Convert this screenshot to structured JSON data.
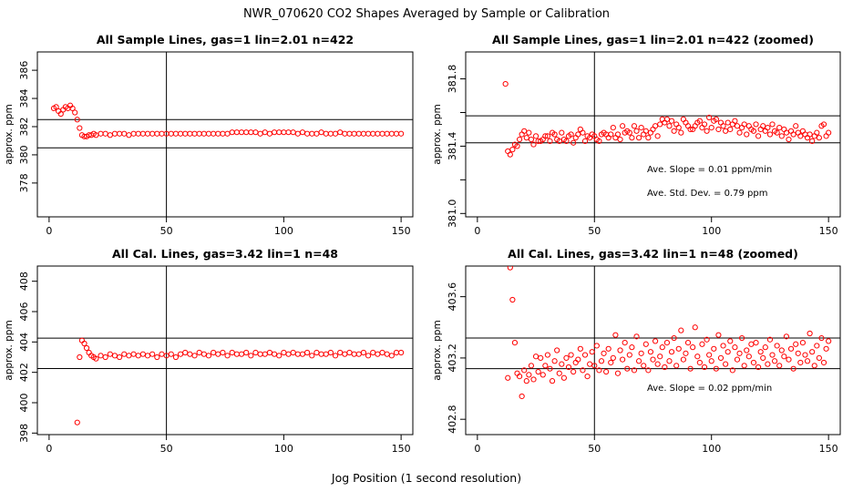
{
  "figure": {
    "title": "NWR_070620  CO2 Shapes Averaged by Sample or Calibration",
    "xlabel": "Jog Position (1 second resolution)"
  },
  "colors": {
    "points": "#ff0000",
    "frame": "#000000",
    "background": "#ffffff"
  },
  "chart_data": [
    {
      "type": "scatter",
      "title": "All Sample Lines, gas=1 lin=2.01 n=422",
      "ylabel": "approx. ppm",
      "xlim": [
        -5,
        155
      ],
      "ylim": [
        375.6,
        387.3
      ],
      "xticks": [
        0,
        50,
        100,
        150
      ],
      "yticks": [
        378,
        380,
        382,
        384,
        386
      ],
      "hlines": [
        382.5,
        380.5
      ],
      "vline": 50,
      "annotations": [],
      "series": [
        {
          "x": [
            2,
            3,
            4,
            5,
            6,
            7,
            8,
            9,
            10,
            11,
            12,
            13,
            14,
            15,
            16,
            17,
            18,
            19,
            20,
            22,
            24,
            26,
            28,
            30,
            32,
            34,
            36,
            38,
            40,
            42,
            44,
            46,
            48,
            50,
            52,
            54,
            56,
            58,
            60,
            62,
            64,
            66,
            68,
            70,
            72,
            74,
            76,
            78,
            80,
            82,
            84,
            86,
            88,
            90,
            92,
            94,
            96,
            98,
            100,
            102,
            104,
            106,
            108,
            110,
            112,
            114,
            116,
            118,
            120,
            122,
            124,
            126,
            128,
            130,
            132,
            134,
            136,
            138,
            140,
            142,
            144,
            146,
            148,
            150
          ],
          "y": [
            383.3,
            383.4,
            383.1,
            382.9,
            383.2,
            383.4,
            383.3,
            383.5,
            383.3,
            383.0,
            382.5,
            381.9,
            381.4,
            381.3,
            381.3,
            381.4,
            381.4,
            381.5,
            381.4,
            381.5,
            381.5,
            381.4,
            381.5,
            381.5,
            381.5,
            381.4,
            381.5,
            381.5,
            381.5,
            381.5,
            381.5,
            381.5,
            381.5,
            381.5,
            381.5,
            381.5,
            381.5,
            381.5,
            381.5,
            381.5,
            381.5,
            381.5,
            381.5,
            381.5,
            381.5,
            381.5,
            381.5,
            381.6,
            381.6,
            381.6,
            381.6,
            381.6,
            381.6,
            381.5,
            381.6,
            381.5,
            381.6,
            381.6,
            381.6,
            381.6,
            381.6,
            381.5,
            381.6,
            381.5,
            381.5,
            381.5,
            381.6,
            381.5,
            381.5,
            381.5,
            381.6,
            381.5,
            381.5,
            381.5,
            381.5,
            381.5,
            381.5,
            381.5,
            381.5,
            381.5,
            381.5,
            381.5,
            381.5,
            381.5
          ]
        }
      ]
    },
    {
      "type": "scatter",
      "title": "All Sample Lines, gas=1 lin=2.01 n=422 (zoomed)",
      "ylabel": "approx. ppm",
      "xlim": [
        -5,
        155
      ],
      "ylim": [
        380.98,
        381.96
      ],
      "xticks": [
        0,
        50,
        100,
        150
      ],
      "yticks": [
        381.0,
        381.2,
        381.4,
        381.6,
        381.8
      ],
      "ytick_labels": [
        "381.0",
        "",
        "381.4",
        "",
        "381.8"
      ],
      "hlines": [
        381.58,
        381.42
      ],
      "vline": 50,
      "annotations": [
        "Ave. Slope =  0.01  ppm/min",
        "Ave. Std. Dev. =  0.79  ppm"
      ],
      "series": [
        {
          "x": [
            12,
            13,
            14,
            15,
            16,
            17,
            18,
            19,
            20,
            21,
            22,
            23,
            24,
            25,
            26,
            27,
            28,
            29,
            30,
            31,
            32,
            33,
            34,
            35,
            36,
            37,
            38,
            39,
            40,
            41,
            42,
            43,
            44,
            45,
            46,
            47,
            48,
            49,
            50,
            51,
            52,
            53,
            54,
            55,
            56,
            57,
            58,
            59,
            60,
            61,
            62,
            63,
            64,
            65,
            66,
            67,
            68,
            69,
            70,
            71,
            72,
            73,
            74,
            75,
            76,
            77,
            78,
            79,
            80,
            81,
            82,
            83,
            84,
            85,
            86,
            87,
            88,
            89,
            90,
            91,
            92,
            93,
            94,
            95,
            96,
            97,
            98,
            99,
            100,
            101,
            102,
            103,
            104,
            105,
            106,
            107,
            108,
            109,
            110,
            111,
            112,
            113,
            114,
            115,
            116,
            117,
            118,
            119,
            120,
            121,
            122,
            123,
            124,
            125,
            126,
            127,
            128,
            129,
            130,
            131,
            132,
            133,
            134,
            135,
            136,
            137,
            138,
            139,
            140,
            141,
            142,
            143,
            144,
            145,
            146,
            147,
            148,
            149,
            150
          ],
          "y": [
            381.77,
            381.37,
            381.35,
            381.38,
            381.41,
            381.4,
            381.44,
            381.47,
            381.49,
            381.45,
            381.48,
            381.44,
            381.41,
            381.46,
            381.43,
            381.43,
            381.44,
            381.46,
            381.46,
            381.43,
            381.48,
            381.47,
            381.44,
            381.43,
            381.48,
            381.44,
            381.43,
            381.46,
            381.47,
            381.42,
            381.45,
            381.47,
            381.5,
            381.48,
            381.43,
            381.46,
            381.45,
            381.47,
            381.46,
            381.44,
            381.43,
            381.47,
            381.48,
            381.47,
            381.45,
            381.47,
            381.51,
            381.45,
            381.47,
            381.44,
            381.52,
            381.48,
            381.49,
            381.48,
            381.45,
            381.52,
            381.49,
            381.45,
            381.51,
            381.47,
            381.49,
            381.45,
            381.48,
            381.5,
            381.52,
            381.46,
            381.53,
            381.56,
            381.54,
            381.56,
            381.52,
            381.55,
            381.49,
            381.53,
            381.51,
            381.48,
            381.56,
            381.54,
            381.52,
            381.5,
            381.5,
            381.52,
            381.54,
            381.55,
            381.51,
            381.53,
            381.49,
            381.57,
            381.51,
            381.55,
            381.56,
            381.5,
            381.54,
            381.52,
            381.49,
            381.54,
            381.5,
            381.53,
            381.55,
            381.52,
            381.48,
            381.51,
            381.53,
            381.47,
            381.52,
            381.5,
            381.49,
            381.53,
            381.46,
            381.5,
            381.52,
            381.49,
            381.51,
            381.47,
            381.53,
            381.49,
            381.48,
            381.51,
            381.46,
            381.5,
            381.48,
            381.44,
            381.49,
            381.47,
            381.52,
            381.48,
            381.46,
            381.49,
            381.47,
            381.45,
            381.47,
            381.43,
            381.46,
            381.48,
            381.45,
            381.52,
            381.53,
            381.46,
            381.48
          ]
        }
      ]
    },
    {
      "type": "scatter",
      "title": "All Cal. Lines, gas=3.42 lin=1 n=48",
      "ylabel": "approx. ppm",
      "xlim": [
        -5,
        155
      ],
      "ylim": [
        397.9,
        409.0
      ],
      "xticks": [
        0,
        50,
        100,
        150
      ],
      "yticks": [
        398,
        400,
        402,
        404,
        406,
        408
      ],
      "hlines": [
        404.25,
        402.25
      ],
      "vline": 50,
      "annotations": [],
      "series": [
        {
          "x": [
            12,
            13,
            14,
            15,
            16,
            17,
            18,
            19,
            20,
            22,
            24,
            26,
            28,
            30,
            32,
            34,
            36,
            38,
            40,
            42,
            44,
            46,
            48,
            50,
            52,
            54,
            56,
            58,
            60,
            62,
            64,
            66,
            68,
            70,
            72,
            74,
            76,
            78,
            80,
            82,
            84,
            86,
            88,
            90,
            92,
            94,
            96,
            98,
            100,
            102,
            104,
            106,
            108,
            110,
            112,
            114,
            116,
            118,
            120,
            122,
            124,
            126,
            128,
            130,
            132,
            134,
            136,
            138,
            140,
            142,
            144,
            146,
            148,
            150
          ],
          "y": [
            398.7,
            403.0,
            404.1,
            403.9,
            403.6,
            403.3,
            403.1,
            403.0,
            402.9,
            403.1,
            403.0,
            403.2,
            403.1,
            403.0,
            403.2,
            403.1,
            403.2,
            403.1,
            403.2,
            403.1,
            403.2,
            403.0,
            403.2,
            403.1,
            403.2,
            403.0,
            403.2,
            403.3,
            403.2,
            403.1,
            403.3,
            403.2,
            403.1,
            403.3,
            403.2,
            403.3,
            403.1,
            403.3,
            403.2,
            403.2,
            403.3,
            403.1,
            403.3,
            403.2,
            403.2,
            403.3,
            403.2,
            403.1,
            403.3,
            403.2,
            403.3,
            403.2,
            403.2,
            403.3,
            403.1,
            403.3,
            403.2,
            403.2,
            403.3,
            403.1,
            403.3,
            403.2,
            403.3,
            403.2,
            403.2,
            403.3,
            403.1,
            403.3,
            403.2,
            403.3,
            403.2,
            403.1,
            403.3,
            403.3
          ]
        }
      ]
    },
    {
      "type": "scatter",
      "title": "All Cal. Lines, gas=3.42 lin=1 n=48 (zoomed)",
      "ylabel": "approx. ppm",
      "xlim": [
        -5,
        155
      ],
      "ylim": [
        402.7,
        403.8
      ],
      "xticks": [
        0,
        50,
        100,
        150
      ],
      "yticks": [
        402.8,
        403.2,
        403.6
      ],
      "ytick_labels": [
        "402.8",
        "403.2",
        "403.6"
      ],
      "hlines": [
        403.33,
        403.13
      ],
      "vline": 50,
      "annotations": [
        "Ave. Slope =  0.02  ppm/min"
      ],
      "series": [
        {
          "x": [
            13,
            14,
            15,
            16,
            17,
            18,
            19,
            20,
            21,
            22,
            23,
            24,
            25,
            26,
            27,
            28,
            29,
            30,
            31,
            32,
            33,
            34,
            35,
            36,
            37,
            38,
            39,
            40,
            41,
            42,
            43,
            44,
            45,
            46,
            47,
            48,
            49,
            50,
            51,
            52,
            53,
            54,
            55,
            56,
            57,
            58,
            59,
            60,
            61,
            62,
            63,
            64,
            65,
            66,
            67,
            68,
            69,
            70,
            71,
            72,
            73,
            74,
            75,
            76,
            77,
            78,
            79,
            80,
            81,
            82,
            83,
            84,
            85,
            86,
            87,
            88,
            89,
            90,
            91,
            92,
            93,
            94,
            95,
            96,
            97,
            98,
            99,
            100,
            101,
            102,
            103,
            104,
            105,
            106,
            107,
            108,
            109,
            110,
            111,
            112,
            113,
            114,
            115,
            116,
            117,
            118,
            119,
            120,
            121,
            122,
            123,
            124,
            125,
            126,
            127,
            128,
            129,
            130,
            131,
            132,
            133,
            134,
            135,
            136,
            137,
            138,
            139,
            140,
            141,
            142,
            143,
            144,
            145,
            146,
            147,
            148,
            149,
            150
          ],
          "y": [
            403.07,
            403.79,
            403.58,
            403.3,
            403.1,
            403.08,
            402.95,
            403.12,
            403.05,
            403.09,
            403.15,
            403.06,
            403.21,
            403.11,
            403.2,
            403.09,
            403.15,
            403.22,
            403.13,
            403.05,
            403.18,
            403.25,
            403.1,
            403.16,
            403.07,
            403.2,
            403.14,
            403.22,
            403.11,
            403.17,
            403.19,
            403.26,
            403.12,
            403.22,
            403.08,
            403.16,
            403.24,
            403.15,
            403.28,
            403.12,
            403.18,
            403.23,
            403.11,
            403.26,
            403.17,
            403.2,
            403.35,
            403.1,
            403.25,
            403.19,
            403.3,
            403.13,
            403.22,
            403.27,
            403.12,
            403.34,
            403.18,
            403.23,
            403.15,
            403.29,
            403.12,
            403.24,
            403.19,
            403.31,
            403.16,
            403.21,
            403.27,
            403.14,
            403.3,
            403.18,
            403.24,
            403.33,
            403.15,
            403.26,
            403.38,
            403.19,
            403.23,
            403.3,
            403.13,
            403.27,
            403.4,
            403.21,
            403.17,
            403.29,
            403.14,
            403.32,
            403.22,
            403.18,
            403.26,
            403.13,
            403.35,
            403.2,
            403.28,
            403.16,
            403.24,
            403.31,
            403.12,
            403.27,
            403.19,
            403.23,
            403.33,
            403.15,
            403.25,
            403.21,
            403.29,
            403.17,
            403.3,
            403.14,
            403.24,
            403.2,
            403.27,
            403.16,
            403.32,
            403.22,
            403.18,
            403.28,
            403.15,
            403.25,
            403.21,
            403.34,
            403.19,
            403.26,
            403.13,
            403.29,
            403.23,
            403.17,
            403.3,
            403.22,
            403.18,
            403.36,
            403.24,
            403.15,
            403.28,
            403.2,
            403.33,
            403.17,
            403.26,
            403.31
          ]
        }
      ]
    }
  ]
}
